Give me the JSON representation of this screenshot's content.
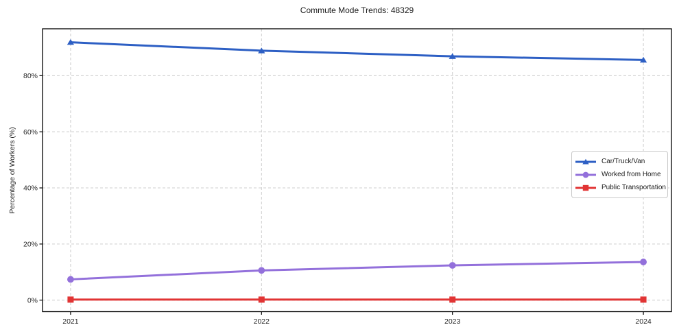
{
  "chart_data": {
    "type": "line",
    "title": "Commute Mode Trends: 48329",
    "xlabel": "",
    "ylabel": "Percentage of Workers (%)",
    "x": [
      2021,
      2022,
      2023,
      2024
    ],
    "xtick_labels": [
      "2021",
      "2022",
      "2023",
      "2024"
    ],
    "series": [
      {
        "name": "Car/Truck/Van",
        "values": [
          91.9,
          88.9,
          86.9,
          85.6
        ],
        "color": "#2d5fc4",
        "marker": "triangle"
      },
      {
        "name": "Worked from Home",
        "values": [
          7.4,
          10.6,
          12.4,
          13.6
        ],
        "color": "#9370db",
        "marker": "circle"
      },
      {
        "name": "Public Transportation",
        "values": [
          0.2,
          0.2,
          0.2,
          0.2
        ],
        "color": "#e13434",
        "marker": "square"
      }
    ],
    "ytick_values": [
      0,
      20,
      40,
      60,
      80
    ],
    "ytick_labels": [
      "0%",
      "20%",
      "40%",
      "60%",
      "80%"
    ],
    "ylim": [
      -4.1,
      96.7
    ],
    "xlim": [
      2020.853,
      2024.147
    ],
    "grid": "dashed-both",
    "legend_position": "center-right",
    "colors": {
      "grid": "#cccccc",
      "frame": "#000000",
      "tick_text": "#262626"
    }
  }
}
